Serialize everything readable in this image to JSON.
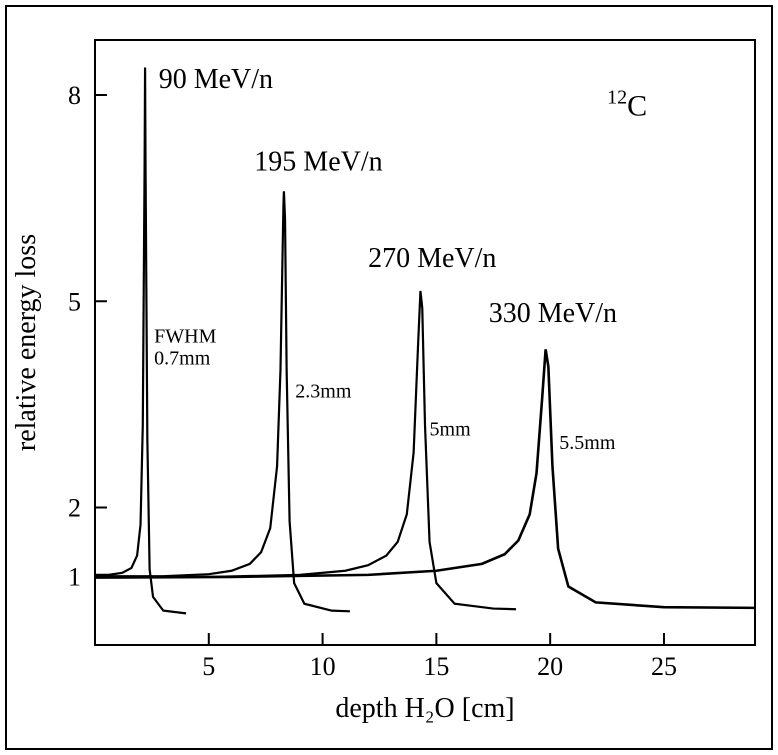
{
  "chart": {
    "type": "line",
    "background_color": "#ffffff",
    "stroke_color": "#000000",
    "axis_stroke_width": 2,
    "title_fontsize": 28,
    "tick_fontsize": 26,
    "series_label_fontsize": 28,
    "fwhm_fontsize": 20,
    "font_family": "Times New Roman",
    "x_axis": {
      "label": "depth H₂O [cm]",
      "min": 0,
      "max": 29,
      "ticks": [
        5,
        10,
        15,
        20,
        25
      ],
      "tick_labels": [
        "5",
        "10",
        "15",
        "20",
        "25"
      ]
    },
    "y_axis": {
      "label": "relative energy loss",
      "scale": "linear",
      "min": 0,
      "max": 8.8,
      "ticks": [
        1,
        2,
        5,
        8
      ],
      "tick_labels": [
        "1",
        "2",
        "5",
        "8"
      ]
    },
    "isotope_label": {
      "mass": "12",
      "element": "C"
    },
    "series": [
      {
        "name": "90 MeV/n",
        "label": "90 MeV/n",
        "fwhm_label_prefix": "FWHM",
        "fwhm_label": "0.7mm",
        "peak_x_cm": 2.2,
        "peak_y": 8.4,
        "line_width": 2.2,
        "points": [
          [
            0.0,
            1.02
          ],
          [
            0.6,
            1.02
          ],
          [
            1.2,
            1.05
          ],
          [
            1.6,
            1.12
          ],
          [
            1.85,
            1.3
          ],
          [
            2.0,
            1.75
          ],
          [
            2.1,
            3.2
          ],
          [
            2.18,
            7.0
          ],
          [
            2.2,
            8.4
          ],
          [
            2.22,
            7.0
          ],
          [
            2.3,
            3.0
          ],
          [
            2.4,
            1.1
          ],
          [
            2.55,
            0.7
          ],
          [
            3.0,
            0.5
          ],
          [
            4.0,
            0.46
          ]
        ]
      },
      {
        "name": "195 MeV/n",
        "label": "195 MeV/n",
        "fwhm_label": "2.3mm",
        "peak_x_cm": 8.3,
        "peak_y": 6.6,
        "line_width": 2.2,
        "points": [
          [
            0.0,
            1.0
          ],
          [
            3.0,
            1.0
          ],
          [
            5.0,
            1.03
          ],
          [
            6.0,
            1.08
          ],
          [
            6.8,
            1.18
          ],
          [
            7.3,
            1.35
          ],
          [
            7.7,
            1.7
          ],
          [
            8.0,
            2.6
          ],
          [
            8.15,
            4.0
          ],
          [
            8.28,
            6.4
          ],
          [
            8.3,
            6.6
          ],
          [
            8.35,
            6.2
          ],
          [
            8.42,
            4.0
          ],
          [
            8.55,
            1.8
          ],
          [
            8.75,
            0.9
          ],
          [
            9.2,
            0.6
          ],
          [
            10.4,
            0.5
          ],
          [
            11.2,
            0.49
          ]
        ]
      },
      {
        "name": "270 MeV/n",
        "label": "270 MeV/n",
        "fwhm_label": "5mm",
        "peak_x_cm": 14.3,
        "peak_y": 5.15,
        "line_width": 2.2,
        "points": [
          [
            0.0,
            0.99
          ],
          [
            5.0,
            0.99
          ],
          [
            9.0,
            1.02
          ],
          [
            11.0,
            1.08
          ],
          [
            12.0,
            1.16
          ],
          [
            12.8,
            1.3
          ],
          [
            13.3,
            1.5
          ],
          [
            13.7,
            1.9
          ],
          [
            14.0,
            2.8
          ],
          [
            14.2,
            4.4
          ],
          [
            14.3,
            5.15
          ],
          [
            14.38,
            4.9
          ],
          [
            14.5,
            3.2
          ],
          [
            14.7,
            1.5
          ],
          [
            15.0,
            0.9
          ],
          [
            15.8,
            0.6
          ],
          [
            17.5,
            0.53
          ],
          [
            18.5,
            0.52
          ]
        ]
      },
      {
        "name": "330 MeV/n",
        "label": "330 MeV/n",
        "fwhm_label": "5.5mm",
        "peak_x_cm": 19.8,
        "peak_y": 4.3,
        "line_width": 2.6,
        "points": [
          [
            0.0,
            0.98
          ],
          [
            6.0,
            0.99
          ],
          [
            12.0,
            1.02
          ],
          [
            15.0,
            1.08
          ],
          [
            17.0,
            1.18
          ],
          [
            18.0,
            1.32
          ],
          [
            18.6,
            1.52
          ],
          [
            19.1,
            1.9
          ],
          [
            19.4,
            2.5
          ],
          [
            19.65,
            3.6
          ],
          [
            19.8,
            4.3
          ],
          [
            19.92,
            4.05
          ],
          [
            20.1,
            2.6
          ],
          [
            20.35,
            1.4
          ],
          [
            20.8,
            0.85
          ],
          [
            22.0,
            0.62
          ],
          [
            25.0,
            0.55
          ],
          [
            29.0,
            0.54
          ]
        ]
      }
    ]
  }
}
